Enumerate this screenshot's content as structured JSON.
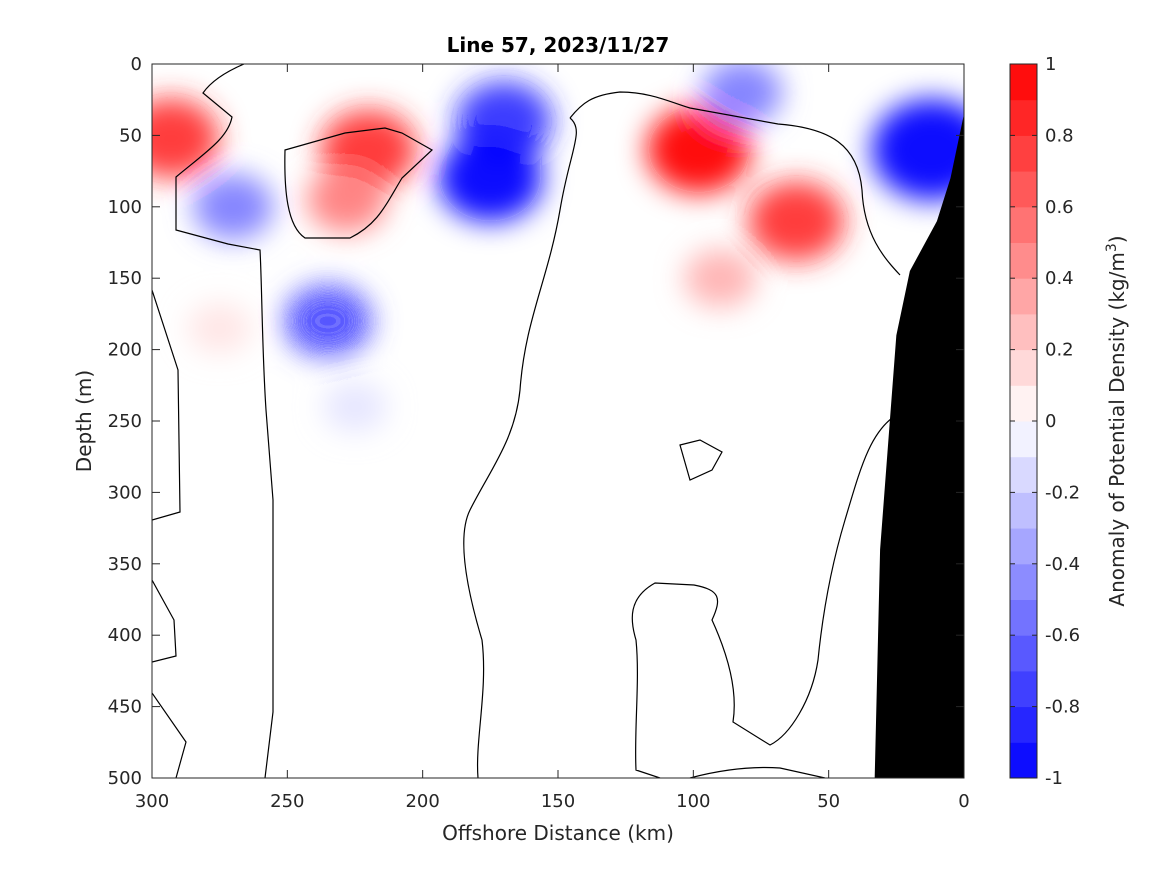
{
  "chart_data": {
    "type": "contour",
    "title": "Line 57, 2023/11/27",
    "xlabel": "Offshore Distance (km)",
    "ylabel": "Depth (m)",
    "colorbar_label": "Anomaly of Potential Density (kg/m",
    "colorbar_label_sup": "3",
    "colorbar_label_end": ")",
    "xlim": [
      300,
      0
    ],
    "ylim": [
      0,
      500
    ],
    "x_reversed": true,
    "y_reversed": true,
    "x_ticks": [
      300,
      250,
      200,
      150,
      100,
      50,
      0
    ],
    "x_tick_labels": [
      "300",
      "250",
      "200",
      "150",
      "100",
      "50",
      "0"
    ],
    "y_ticks": [
      0,
      50,
      100,
      150,
      200,
      250,
      300,
      350,
      400,
      450,
      500
    ],
    "y_tick_labels": [
      "0",
      "50",
      "100",
      "150",
      "200",
      "250",
      "300",
      "350",
      "400",
      "450",
      "500"
    ],
    "colorbar_range": [
      -1,
      1
    ],
    "colorbar_ticks": [
      1,
      0.8,
      0.6,
      0.4,
      0.2,
      0,
      -0.2,
      -0.4,
      -0.6,
      -0.8,
      -1
    ],
    "colorbar_tick_labels": [
      "1",
      "0.8",
      "0.6",
      "0.4",
      "0.2",
      "0",
      "-0.2",
      "-0.4",
      "-0.6",
      "-0.8",
      "-1"
    ],
    "contour_levels": [
      -1,
      -0.9,
      -0.8,
      -0.7,
      -0.6,
      -0.5,
      -0.4,
      -0.3,
      -0.2,
      -0.1,
      0,
      0.1,
      0.2,
      0.3,
      0.4,
      0.5,
      0.6,
      0.7,
      0.8,
      0.9,
      1
    ],
    "colormap": "blue-white-red",
    "colors": {
      "positive_max": "#ff0000",
      "negative_max": "#0000ff",
      "neutral": "#ffffff",
      "bathymetry": "#000000"
    },
    "bathymetry_profile": [
      {
        "x": 33,
        "depth": 500
      },
      {
        "x": 31,
        "depth": 340
      },
      {
        "x": 25,
        "depth": 190
      },
      {
        "x": 20,
        "depth": 145
      },
      {
        "x": 10,
        "depth": 110
      },
      {
        "x": 5,
        "depth": 80
      },
      {
        "x": 0,
        "depth": 35
      }
    ],
    "anomaly_features": [
      {
        "x": 293,
        "depth": 52,
        "value": 0.5
      },
      {
        "x": 270,
        "depth": 100,
        "value": -0.3
      },
      {
        "x": 275,
        "depth": 185,
        "value": 0.1
      },
      {
        "x": 220,
        "depth": 60,
        "value": 0.5
      },
      {
        "x": 228,
        "depth": 95,
        "value": 0.3
      },
      {
        "x": 170,
        "depth": 40,
        "value": -0.5
      },
      {
        "x": 175,
        "depth": 80,
        "value": -0.6
      },
      {
        "x": 235,
        "depth": 180,
        "value": -0.4
      },
      {
        "x": 225,
        "depth": 240,
        "value": -0.1
      },
      {
        "x": 98,
        "depth": 60,
        "value": 0.6
      },
      {
        "x": 62,
        "depth": 110,
        "value": 0.5
      },
      {
        "x": 90,
        "depth": 150,
        "value": 0.2
      },
      {
        "x": 82,
        "depth": 20,
        "value": -0.3
      },
      {
        "x": 12,
        "depth": 60,
        "value": -0.8
      }
    ]
  }
}
